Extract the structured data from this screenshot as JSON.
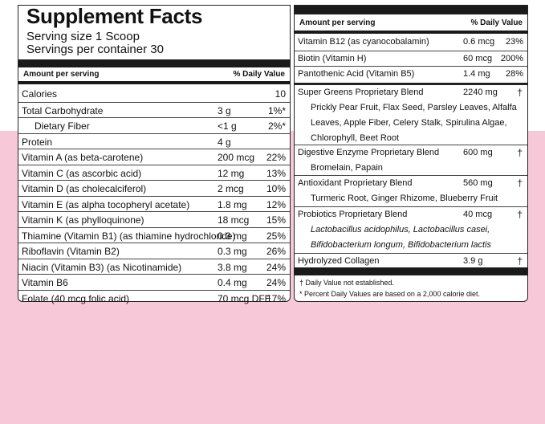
{
  "title": "Supplement Facts",
  "serving_size": "Serving size 1 Scoop",
  "servings_per_container": "Servings per container 30",
  "header_amount": "Amount per serving",
  "header_dv": "% Daily Value",
  "left_rows": [
    {
      "name": "Calories",
      "amount": "",
      "dv": "10"
    },
    {
      "name": "Total Carbohydrate",
      "amount": "3 g",
      "dv": "1%*"
    },
    {
      "name": "Dietary Fiber",
      "amount": "<1 g",
      "dv": "2%*"
    },
    {
      "name": "Protein",
      "amount": "4 g",
      "dv": ""
    },
    {
      "name": "Vitamin A (as beta-carotene)",
      "amount": "200 mcg",
      "dv": "22%"
    },
    {
      "name": "Vitamin C (as ascorbic acid)",
      "amount": "12 mg",
      "dv": "13%"
    },
    {
      "name": "Vitamin D (as cholecalciferol)",
      "amount": "2 mcg",
      "dv": "10%"
    },
    {
      "name": "Vitamin E (as alpha tocopheryl acetate)",
      "amount": "1.8 mg",
      "dv": "12%"
    },
    {
      "name": "Vitamin K (as phylloquinone)",
      "amount": "18 mcg",
      "dv": "15%"
    },
    {
      "name": "Thiamine (Vitamin B1) (as thiamine hydrochloride)",
      "amount": "0.3 mg",
      "dv": "25%"
    },
    {
      "name": "Riboflavin (Vitamin B2)",
      "amount": "0.3 mg",
      "dv": "26%"
    },
    {
      "name": "Niacin (Vitamin B3) (as Nicotinamide)",
      "amount": "3.8 mg",
      "dv": "24%"
    },
    {
      "name": "Vitamin B6",
      "amount": "0.4 mg",
      "dv": "24%"
    },
    {
      "name": "Folate (40 mcg folic acid)",
      "amount": "70 mcg DFE",
      "dv": "17%"
    }
  ],
  "right_vitamins": [
    {
      "name": "Vitamin B12 (as cyanocobalamin)",
      "amount": "0.6 mcg",
      "dv": "23%"
    },
    {
      "name": "Biotin (Vitamin H)",
      "amount": "60 mcg",
      "dv": "200%"
    },
    {
      "name": "Pantothenic Acid (Vitamin B5)",
      "amount": "1.4 mg",
      "dv": "28%"
    }
  ],
  "blends": [
    {
      "name": "Super Greens Proprietary Blend",
      "amount": "2240 mg",
      "dv": "†",
      "lines": [
        "Prickly Pear Fruit, Flax Seed, Parsley Leaves, Alfalfa",
        "Leaves, Apple Fiber, Celery Stalk, Spirulina Algae,",
        "Chlorophyll, Beet Root"
      ]
    },
    {
      "name": "Digestive Enzyme Proprietary Blend",
      "amount": "600 mg",
      "dv": "†",
      "lines": [
        "Bromelain, Papain"
      ]
    },
    {
      "name": "Antioxidant Proprietary Blend",
      "amount": "560 mg",
      "dv": "†",
      "lines": [
        "Turmeric Root, Ginger Rhizome,  Blueberry Fruit"
      ]
    },
    {
      "name": "Probiotics Proprietary Blend",
      "amount": "40 mcg",
      "dv": "†",
      "lines": [
        "Lactobacillus acidophilus, Lactobacillus casei,",
        "Bifidobacterium longum, Bifidobacterium lactis"
      ]
    },
    {
      "name": "Hydrolyzed Collagen",
      "amount": "3.9 g",
      "dv": "†",
      "lines": []
    }
  ],
  "footnote_1": "† Daily Value not established.",
  "footnote_2": "* Percent Daily Values are based on a 2,000 calorie diet.",
  "colors": {
    "background_band": "#f7c8d8",
    "bar": "#1a1a1a"
  }
}
